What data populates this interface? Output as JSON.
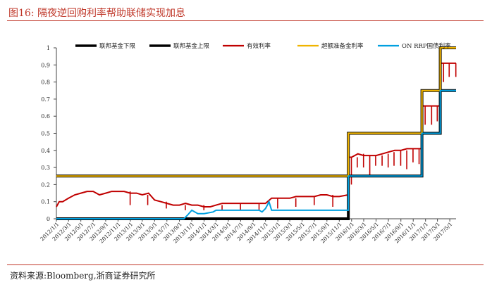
{
  "figure": {
    "title": "图16:  隔夜逆回购利率帮助联储实现加息",
    "source": "资料来源:Bloomberg,浙商证券研究所"
  },
  "colors": {
    "floor": "#000000",
    "ceiling": "#000000",
    "effective": "#c00000",
    "ioer": "#f0b400",
    "onrrp": "#00a0e0",
    "accent": "#c0392b"
  },
  "chart_data": {
    "type": "line",
    "ylim": [
      0,
      1
    ],
    "yticks": [
      "0",
      "0.1",
      "0.2",
      "0.3",
      "0.4",
      "0.5",
      "0.6",
      "0.7",
      "0.8",
      "0.9",
      "1"
    ],
    "xlim": [
      "2012-01-01",
      "2017-06-01"
    ],
    "xticks": [
      "2012/1/1",
      "2012/3/1",
      "2012/5/1",
      "2012/7/1",
      "2012/9/1",
      "2012/11/1",
      "2013/1/1",
      "2013/3/1",
      "2013/5/1",
      "2013/7/1",
      "2013/9/1",
      "2013/11/1",
      "2014/1/1",
      "2014/3/1",
      "2014/5/1",
      "2014/7/1",
      "2014/9/1",
      "2014/11/1",
      "2015/1/1",
      "2015/3/1",
      "2015/5/1",
      "2015/7/1",
      "2015/9/1",
      "2015/11/1",
      "2016/1/1",
      "2016/3/1",
      "2016/5/1",
      "2016/7/1",
      "2016/9/1",
      "2016/11/1",
      "2017/1/1",
      "2017/3/1",
      "2017/5/1"
    ],
    "legend": [
      "联邦基金下限",
      "联邦基金上限",
      "有效利率",
      "超额准备金利率",
      "ON RRP国债利率"
    ],
    "series": [
      {
        "name": "联邦基金下限",
        "key": "floor",
        "points": [
          [
            "2012-01-01",
            0
          ],
          [
            "2015-12-16",
            0
          ],
          [
            "2015-12-16",
            0.25
          ],
          [
            "2016-12-14",
            0.25
          ],
          [
            "2016-12-14",
            0.5
          ],
          [
            "2017-03-15",
            0.5
          ],
          [
            "2017-03-15",
            0.75
          ],
          [
            "2017-06-01",
            0.75
          ]
        ]
      },
      {
        "name": "联邦基金上限",
        "key": "ceiling",
        "points": [
          [
            "2012-01-01",
            0.25
          ],
          [
            "2015-12-16",
            0.25
          ],
          [
            "2015-12-16",
            0.5
          ],
          [
            "2016-12-14",
            0.5
          ],
          [
            "2016-12-14",
            0.75
          ],
          [
            "2017-03-15",
            0.75
          ],
          [
            "2017-03-15",
            1.0
          ],
          [
            "2017-06-01",
            1.0
          ]
        ]
      },
      {
        "name": "超额准备金利率",
        "key": "ioer",
        "points": [
          [
            "2012-01-01",
            0.25
          ],
          [
            "2015-12-16",
            0.25
          ],
          [
            "2015-12-16",
            0.5
          ],
          [
            "2016-12-14",
            0.5
          ],
          [
            "2016-12-14",
            0.75
          ],
          [
            "2017-03-15",
            0.75
          ],
          [
            "2017-03-15",
            1.0
          ],
          [
            "2017-06-01",
            1.0
          ]
        ]
      },
      {
        "name": "ON RRP国债利率",
        "key": "onrrp",
        "points": [
          [
            "2012-01-01",
            0
          ],
          [
            "2013-09-23",
            0
          ],
          [
            "2013-10-10",
            0.02
          ],
          [
            "2013-11-01",
            0.05
          ],
          [
            "2013-12-01",
            0.03
          ],
          [
            "2014-01-01",
            0.03
          ],
          [
            "2014-02-15",
            0.04
          ],
          [
            "2014-03-01",
            0.05
          ],
          [
            "2014-10-01",
            0.05
          ],
          [
            "2014-10-15",
            0.04
          ],
          [
            "2014-11-01",
            0.06
          ],
          [
            "2014-11-10",
            0.08
          ],
          [
            "2014-11-18",
            0.1
          ],
          [
            "2014-12-01",
            0.05
          ],
          [
            "2015-12-16",
            0.05
          ],
          [
            "2015-12-16",
            0.25
          ],
          [
            "2016-12-14",
            0.25
          ],
          [
            "2016-12-14",
            0.5
          ],
          [
            "2017-03-15",
            0.5
          ],
          [
            "2017-03-15",
            0.75
          ],
          [
            "2017-06-01",
            0.75
          ]
        ]
      },
      {
        "name": "有效利率",
        "key": "effective",
        "points": [
          [
            "2012-01-01",
            0.07
          ],
          [
            "2012-01-15",
            0.1
          ],
          [
            "2012-02-01",
            0.1
          ],
          [
            "2012-03-01",
            0.12
          ],
          [
            "2012-04-01",
            0.14
          ],
          [
            "2012-05-01",
            0.15
          ],
          [
            "2012-06-01",
            0.16
          ],
          [
            "2012-07-01",
            0.16
          ],
          [
            "2012-08-01",
            0.14
          ],
          [
            "2012-09-01",
            0.15
          ],
          [
            "2012-10-01",
            0.16
          ],
          [
            "2012-11-01",
            0.16
          ],
          [
            "2012-12-01",
            0.16
          ],
          [
            "2013-01-01",
            0.15
          ],
          [
            "2013-02-01",
            0.15
          ],
          [
            "2013-03-01",
            0.14
          ],
          [
            "2013-04-01",
            0.15
          ],
          [
            "2013-05-01",
            0.11
          ],
          [
            "2013-06-01",
            0.1
          ],
          [
            "2013-07-01",
            0.09
          ],
          [
            "2013-08-01",
            0.08
          ],
          [
            "2013-09-01",
            0.08
          ],
          [
            "2013-10-01",
            0.09
          ],
          [
            "2013-11-01",
            0.08
          ],
          [
            "2013-12-01",
            0.08
          ],
          [
            "2014-01-01",
            0.07
          ],
          [
            "2014-02-01",
            0.07
          ],
          [
            "2014-03-01",
            0.08
          ],
          [
            "2014-04-01",
            0.09
          ],
          [
            "2014-05-01",
            0.09
          ],
          [
            "2014-06-01",
            0.09
          ],
          [
            "2014-07-01",
            0.09
          ],
          [
            "2014-08-01",
            0.09
          ],
          [
            "2014-09-01",
            0.09
          ],
          [
            "2014-10-01",
            0.09
          ],
          [
            "2014-11-01",
            0.09
          ],
          [
            "2014-12-01",
            0.12
          ],
          [
            "2015-01-01",
            0.12
          ],
          [
            "2015-02-01",
            0.12
          ],
          [
            "2015-03-01",
            0.12
          ],
          [
            "2015-04-01",
            0.13
          ],
          [
            "2015-05-01",
            0.13
          ],
          [
            "2015-06-01",
            0.13
          ],
          [
            "2015-07-01",
            0.13
          ],
          [
            "2015-08-01",
            0.14
          ],
          [
            "2015-09-01",
            0.14
          ],
          [
            "2015-10-01",
            0.13
          ],
          [
            "2015-11-01",
            0.13
          ],
          [
            "2015-12-15",
            0.14
          ],
          [
            "2015-12-17",
            0.36
          ],
          [
            "2016-01-01",
            0.36
          ],
          [
            "2016-02-01",
            0.38
          ],
          [
            "2016-03-01",
            0.37
          ],
          [
            "2016-04-01",
            0.37
          ],
          [
            "2016-05-01",
            0.37
          ],
          [
            "2016-06-01",
            0.38
          ],
          [
            "2016-07-01",
            0.39
          ],
          [
            "2016-08-01",
            0.4
          ],
          [
            "2016-09-01",
            0.4
          ],
          [
            "2016-10-01",
            0.41
          ],
          [
            "2016-11-01",
            0.41
          ],
          [
            "2016-12-13",
            0.41
          ],
          [
            "2016-12-15",
            0.66
          ],
          [
            "2017-01-01",
            0.66
          ],
          [
            "2017-02-01",
            0.66
          ],
          [
            "2017-03-14",
            0.66
          ],
          [
            "2017-03-16",
            0.91
          ],
          [
            "2017-06-01",
            0.91
          ]
        ]
      }
    ],
    "effective_dips": [
      [
        "2012-12-31",
        0.08
      ],
      [
        "2013-03-28",
        0.08
      ],
      [
        "2013-06-28",
        0.06
      ],
      [
        "2013-09-30",
        0.05
      ],
      [
        "2013-12-31",
        0.05
      ],
      [
        "2014-03-31",
        0.05
      ],
      [
        "2014-06-30",
        0.05
      ],
      [
        "2014-09-30",
        0.05
      ],
      [
        "2014-12-31",
        0.06
      ],
      [
        "2015-03-31",
        0.07
      ],
      [
        "2015-06-30",
        0.08
      ],
      [
        "2015-09-30",
        0.07
      ],
      [
        "2015-12-31",
        0.2
      ],
      [
        "2016-01-29",
        0.3
      ],
      [
        "2016-02-29",
        0.3
      ],
      [
        "2016-03-31",
        0.25
      ],
      [
        "2016-04-29",
        0.31
      ],
      [
        "2016-05-31",
        0.31
      ],
      [
        "2016-06-30",
        0.3
      ],
      [
        "2016-07-29",
        0.31
      ],
      [
        "2016-08-31",
        0.31
      ],
      [
        "2016-09-30",
        0.29
      ],
      [
        "2016-10-31",
        0.33
      ],
      [
        "2016-11-30",
        0.32
      ],
      [
        "2016-12-30",
        0.55
      ],
      [
        "2017-01-31",
        0.55
      ],
      [
        "2017-02-28",
        0.57
      ],
      [
        "2017-03-31",
        0.8
      ],
      [
        "2017-04-28",
        0.83
      ],
      [
        "2017-05-31",
        0.83
      ]
    ]
  }
}
